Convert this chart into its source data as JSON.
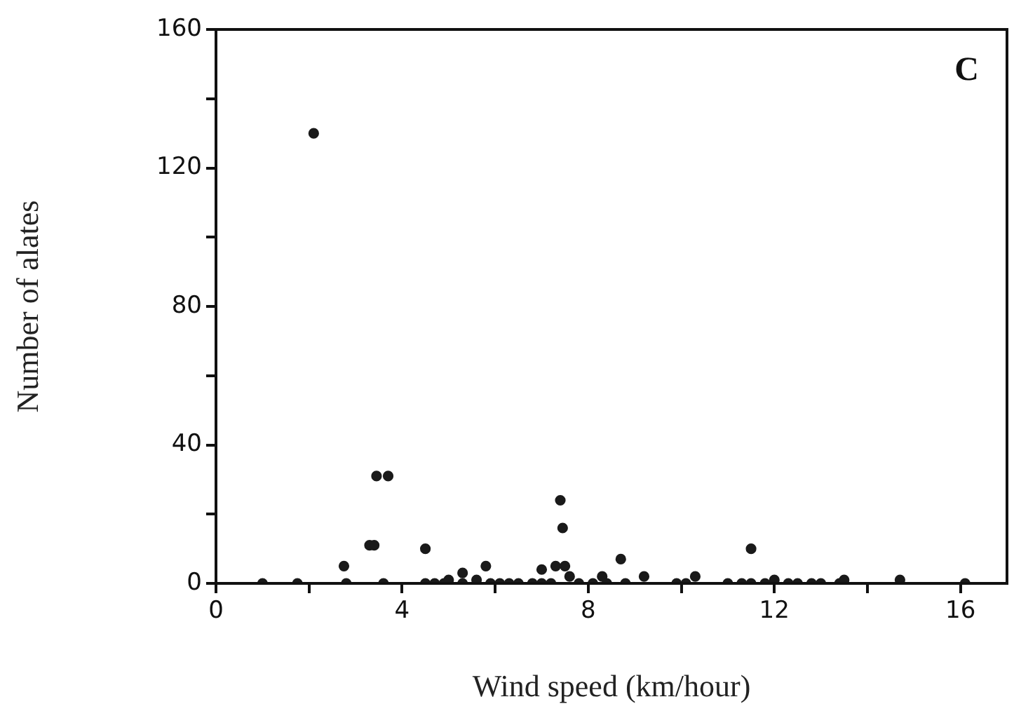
{
  "chart_data": {
    "type": "scatter",
    "xlabel": "Wind speed (km/hour)",
    "ylabel": "Number of alates",
    "annotations": [
      "C"
    ],
    "xlim": [
      0,
      17
    ],
    "xticks": [
      0,
      {
        "value": 2,
        "label": null
      },
      4,
      {
        "value": 6,
        "label": null
      },
      8,
      {
        "value": 10,
        "label": null
      },
      12,
      {
        "value": 14,
        "label": null
      },
      16
    ],
    "ylim": [
      0,
      160
    ],
    "yticks": [
      0,
      {
        "value": 20,
        "label": null
      },
      40,
      {
        "value": 60,
        "label": null
      },
      80,
      {
        "value": 100,
        "label": null
      },
      120,
      {
        "value": 140,
        "label": null
      },
      160
    ],
    "grid": false,
    "legend": false,
    "marker": "circle",
    "series": [
      {
        "color": "#1a1a1a",
        "x": [
          1.0,
          1.75,
          2.8,
          3.6,
          4.5,
          4.7,
          4.9,
          5.3,
          5.9,
          6.1,
          6.3,
          6.5,
          6.8,
          7.0,
          7.2,
          7.8,
          8.1,
          8.4,
          8.8,
          9.9,
          10.1,
          11.0,
          11.3,
          11.5,
          11.8,
          12.3,
          12.5,
          12.8,
          13.0,
          13.4,
          16.1,
          5.0,
          5.3,
          5.6,
          7.0,
          7.3,
          7.5,
          7.6,
          8.3,
          9.2,
          10.3,
          12.0,
          13.5,
          14.7,
          2.1,
          2.75,
          3.3,
          3.4,
          3.45,
          3.7,
          4.5,
          5.8,
          7.4,
          7.45,
          8.7,
          11.5
        ],
        "values": [
          0,
          0,
          0,
          0,
          0,
          0,
          0,
          0,
          0,
          0,
          0,
          0,
          0,
          0,
          0,
          0,
          0,
          0,
          0,
          0,
          0,
          0,
          0,
          0,
          0,
          0,
          0,
          0,
          0,
          0,
          0,
          1,
          3,
          1,
          4,
          5,
          5,
          2,
          2,
          2,
          2,
          1,
          1,
          1,
          130,
          5,
          11,
          11,
          31,
          31,
          10,
          5,
          24,
          16,
          7,
          10
        ]
      }
    ]
  }
}
